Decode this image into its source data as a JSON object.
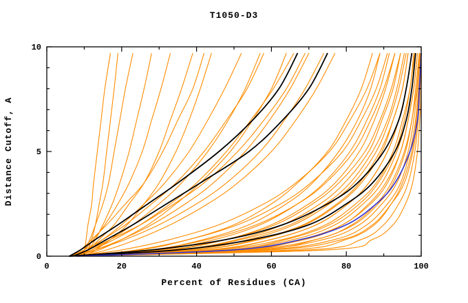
{
  "chart_data": {
    "type": "line",
    "title": "T1050-D3",
    "xlabel": "Percent of Residues (CA)",
    "ylabel": "Distance Cutoff, A",
    "xlim": [
      0,
      100
    ],
    "ylim": [
      0,
      10
    ],
    "x_major_ticks": [
      0,
      20,
      40,
      60,
      80,
      100
    ],
    "x_minor_ticks": [
      10,
      30,
      50,
      70,
      90
    ],
    "y_major_ticks": [
      0,
      5,
      10
    ],
    "y_minor_ticks": [
      1,
      2,
      3,
      4,
      6,
      7,
      8,
      9
    ],
    "grid": false,
    "legend": "none",
    "colors": {
      "orange": "#ff8c00",
      "black": "#000000",
      "blue": "#3838cf"
    },
    "line_widths": {
      "orange": 1.1,
      "black": 1.8,
      "blue": 1.7
    },
    "y_grid": [
      0,
      0.3,
      0.8,
      1.5,
      2.5,
      3.5,
      5,
      6.5,
      8,
      9.7
    ],
    "series": [
      {
        "color": "orange",
        "x": [
          9,
          10,
          10.5,
          11,
          12,
          12.5,
          13.5,
          14.5,
          15.5,
          17
        ]
      },
      {
        "color": "orange",
        "x": [
          10,
          11,
          12,
          13,
          14,
          15,
          16,
          17,
          18,
          19
        ]
      },
      {
        "color": "orange",
        "x": [
          8,
          10,
          11.5,
          13,
          15,
          16.5,
          18,
          19.5,
          21,
          23
        ]
      },
      {
        "color": "orange",
        "x": [
          9,
          11,
          13,
          15,
          17.5,
          19.5,
          22,
          24,
          26,
          28
        ]
      },
      {
        "color": "orange",
        "x": [
          7,
          10,
          12.5,
          15.5,
          19,
          22,
          25.5,
          28,
          30.5,
          33
        ]
      },
      {
        "color": "orange",
        "x": [
          8,
          11,
          14,
          18,
          22,
          26,
          30,
          33,
          36,
          39
        ]
      },
      {
        "color": "orange",
        "x": [
          10,
          13,
          17,
          21.5,
          26,
          30,
          34.5,
          38,
          41,
          44
        ]
      },
      {
        "color": "orange",
        "x": [
          6,
          9,
          12,
          16,
          21,
          26,
          31,
          35,
          39,
          42
        ]
      },
      {
        "color": "orange",
        "x": [
          7,
          11,
          15,
          20,
          26,
          31.5,
          38,
          43,
          47.5,
          52
        ]
      },
      {
        "color": "orange",
        "x": [
          8,
          12,
          17,
          23,
          30,
          36,
          43,
          48.5,
          53,
          57
        ]
      },
      {
        "color": "orange",
        "x": [
          6,
          10,
          15,
          21,
          28,
          34.5,
          42,
          48,
          53.5,
          58
        ]
      },
      {
        "color": "orange",
        "x": [
          9,
          14,
          20,
          27,
          34.5,
          41,
          49,
          55,
          60,
          64
        ]
      },
      {
        "color": "orange",
        "x": [
          7,
          12,
          18,
          25,
          33,
          40,
          48,
          54.5,
          60.5,
          66
        ]
      },
      {
        "color": "orange",
        "x": [
          8,
          13,
          20,
          28,
          37,
          44.5,
          53,
          59.5,
          65,
          70
        ]
      },
      {
        "color": "orange",
        "x": [
          6,
          11,
          17,
          25,
          34,
          42,
          51,
          58,
          64,
          69
        ]
      },
      {
        "color": "orange",
        "x": [
          7,
          13,
          21,
          30,
          40,
          48,
          57,
          63.5,
          69,
          74
        ]
      },
      {
        "color": "orange",
        "x": [
          9,
          16,
          24,
          33,
          43,
          51,
          60,
          66.5,
          72,
          77
        ]
      },
      {
        "color": "orange",
        "x": [
          6,
          25,
          38,
          50,
          60,
          67,
          75,
          80,
          84,
          87
        ]
      },
      {
        "color": "orange",
        "x": [
          7,
          28,
          42,
          54,
          64,
          71,
          78,
          83,
          86.5,
          89
        ]
      },
      {
        "color": "orange",
        "x": [
          6,
          30,
          45,
          57,
          67,
          74,
          81,
          85.5,
          89,
          91.5
        ]
      },
      {
        "color": "orange",
        "x": [
          8,
          33,
          48,
          60,
          70,
          77,
          83.5,
          87.5,
          90.5,
          93
        ]
      },
      {
        "color": "orange",
        "x": [
          6,
          35,
          51,
          63,
          73,
          79.5,
          86,
          89.5,
          92.5,
          94.5
        ]
      },
      {
        "color": "orange",
        "x": [
          7,
          38,
          54,
          66,
          75.5,
          82,
          88,
          91.5,
          94,
          96
        ]
      },
      {
        "color": "orange",
        "x": [
          6,
          40,
          57,
          69,
          78,
          84,
          89.5,
          92.5,
          95,
          96.5
        ]
      },
      {
        "color": "orange",
        "x": [
          8,
          43,
          60,
          72,
          80.5,
          86,
          91,
          94,
          96,
          97.5
        ]
      },
      {
        "color": "orange",
        "x": [
          6,
          45,
          63,
          74.5,
          82.5,
          88,
          92.5,
          95,
          97,
          98
        ]
      },
      {
        "color": "orange",
        "x": [
          7,
          48,
          66,
          77,
          84.5,
          89.5,
          93.5,
          96,
          97.5,
          98.5
        ]
      },
      {
        "color": "orange",
        "x": [
          6,
          50,
          69,
          79,
          86.5,
          91,
          94.5,
          96.5,
          98,
          99
        ]
      },
      {
        "color": "orange",
        "x": [
          9,
          53,
          72,
          81.5,
          88,
          92,
          95.5,
          97.5,
          98.5,
          99.5
        ]
      },
      {
        "color": "orange",
        "x": [
          6,
          55,
          74,
          83.5,
          89.5,
          93.5,
          96.5,
          98,
          99,
          99.8
        ]
      },
      {
        "color": "orange",
        "x": [
          7,
          58,
          77,
          85.5,
          91,
          94.5,
          97,
          98.5,
          99.3,
          100
        ]
      },
      {
        "color": "orange",
        "x": [
          6,
          60,
          79,
          87,
          92,
          95.5,
          97.8,
          99,
          99.6,
          100
        ]
      },
      {
        "color": "orange",
        "x": [
          7,
          20,
          33,
          46,
          58,
          66.5,
          75.5,
          81,
          85.5,
          89
        ]
      },
      {
        "color": "orange",
        "x": [
          8,
          24,
          38,
          51,
          62.5,
          70.5,
          79,
          84,
          88,
          91
        ]
      },
      {
        "color": "orange",
        "x": [
          6,
          28,
          43,
          56,
          67,
          74.5,
          82,
          86.5,
          90,
          93
        ]
      },
      {
        "color": "orange",
        "x": [
          7,
          32,
          48,
          61,
          71,
          78,
          85,
          89,
          92,
          94.5
        ]
      },
      {
        "color": "orange",
        "x": [
          9,
          36,
          52,
          65,
          74.5,
          81,
          87,
          91,
          93.5,
          95.5
        ]
      },
      {
        "color": "orange",
        "x": [
          6,
          40,
          56,
          68.5,
          77.5,
          83.5,
          89,
          92.5,
          95,
          96.5
        ]
      },
      {
        "color": "orange",
        "x": [
          8,
          44,
          60,
          72,
          80.5,
          86,
          91,
          94,
          96,
          97.5
        ]
      },
      {
        "color": "orange",
        "x": [
          7,
          48,
          64,
          75.5,
          83.5,
          88.5,
          93,
          95.5,
          97,
          98.3
        ]
      },
      {
        "color": "orange",
        "x": [
          6,
          52,
          68,
          79,
          86,
          90.5,
          94.5,
          96.5,
          98,
          99
        ]
      },
      {
        "color": "orange",
        "x": [
          9,
          56,
          72,
          82,
          88.5,
          92.5,
          95.8,
          97.5,
          98.8,
          99.6
        ]
      },
      {
        "color": "orange",
        "x": [
          6,
          65,
          80,
          87.5,
          92,
          95,
          97.5,
          98.7,
          99.4,
          100
        ]
      },
      {
        "color": "orange",
        "x": [
          7,
          70,
          84,
          90,
          94,
          96.5,
          98.3,
          99.2,
          99.7,
          100
        ]
      },
      {
        "color": "orange",
        "x": [
          6,
          75,
          87,
          92.5,
          95.8,
          97.7,
          99,
          99.6,
          100,
          100
        ]
      },
      {
        "color": "black",
        "x": [
          6,
          9,
          13,
          19,
          27,
          35,
          46,
          55,
          62,
          67
        ]
      },
      {
        "color": "black",
        "x": [
          7,
          11,
          16,
          23,
          32,
          41,
          54,
          63,
          70,
          75
        ]
      },
      {
        "color": "black",
        "x": [
          6,
          28,
          48,
          63,
          75,
          83,
          90,
          94,
          96,
          97.5
        ]
      },
      {
        "color": "black",
        "x": [
          6,
          35,
          55,
          70,
          80,
          87,
          93,
          96,
          97.5,
          98.5
        ]
      },
      {
        "color": "blue",
        "x": [
          8,
          50,
          68,
          80,
          88,
          93,
          97,
          99,
          99.5,
          100
        ]
      }
    ]
  }
}
